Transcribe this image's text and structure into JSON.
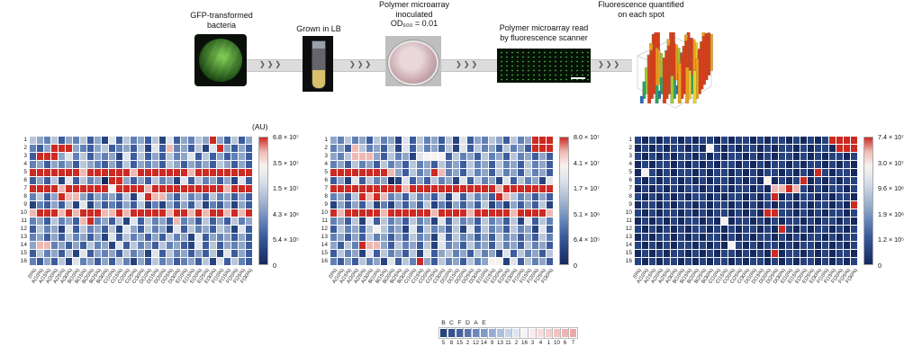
{
  "figure": {
    "unit_label": "(AU)"
  },
  "icons": {
    "chevron_group": "❯❯❯"
  },
  "workflow": {
    "steps": [
      {
        "caption": "GFP-transformed\nbacteria",
        "image": "petri-dish-gfp-photo"
      },
      {
        "caption": "Grown in LB",
        "image": "culture-tube-photo"
      },
      {
        "caption": "Polymer microarray\ninoculated\nOD₆₀₀ = 0.01",
        "image": "inoculated-dish-photo"
      },
      {
        "caption": "Polymer microarray read\nby fluorescence scanner",
        "image": "scanner-readout-image"
      },
      {
        "caption": "Fluorescence quantified\non each spot",
        "image": "3d-bar-plot-image"
      }
    ]
  },
  "heatmap_shared": {
    "row_labels": [
      "1",
      "2",
      "3",
      "4",
      "5",
      "6",
      "7",
      "8",
      "9",
      "10",
      "11",
      "12",
      "13",
      "14",
      "15",
      "16"
    ],
    "col_labels": [
      "(0%)",
      "A(10%)",
      "A(15%)",
      "A(20%)",
      "A(25%)",
      "A(30%)",
      "B(10%)",
      "B(15%)",
      "B(20%)",
      "B(25%)",
      "B(30%)",
      "C(10%)",
      "C(15%)",
      "C(20%)",
      "C(25%)",
      "C(30%)",
      "D(10%)",
      "D(15%)",
      "D(20%)",
      "D(25%)",
      "D(30%)",
      "E(10%)",
      "E(15%)",
      "E(20%)",
      "E(25%)",
      "E(30%)",
      "F(10%)",
      "F(15%)",
      "F(20%)",
      "F(25%)",
      "F(30%)"
    ],
    "level_colors": [
      "#16295e",
      "#27437f",
      "#3c5c9d",
      "#6181b6",
      "#8fa5c8",
      "#b9c6da",
      "#dfe3ec",
      "#f7f2f0",
      "#efb9b3",
      "#cc2a23"
    ]
  },
  "chart_data": [
    {
      "type": "heatmap",
      "name": "fluorescence-heatmap-1",
      "unit": "(AU)",
      "colorbar_ticks": [
        "6.8 × 10⁷",
        "3.5 × 10⁷",
        "1.5 × 10⁷",
        "4.3 × 10⁶",
        "5.4 × 10⁵",
        "0"
      ],
      "cells": [
        "5435243524162534251624354942524",
        "3249994324523425162834251694242",
        "2999463524341625242534625242342",
        "3424342543242524342542434254242",
        "9999999899999989999999899999999",
        "2425162534099424253416253424162",
        "9999899999979999899999999998999",
        "3524988424342516988425342534242",
        "1324251614232425131424251324142",
        "8999898999889899999899898998989",
        "3425342893425162534283425242534",
        "2534162534251642534162534254162",
        "3424253424162534242534162434242",
        "4883424253416253425342162524342",
        "2534251624342534162534242516242",
        "3242516342425314253423425162532"
      ]
    },
    {
      "type": "heatmap",
      "name": "fluorescence-heatmap-2",
      "colorbar_ticks": [
        "8.0 × 10⁷",
        "4.1 × 10⁷",
        "1.7 × 10⁷",
        "5.1 × 10⁶",
        "6.4 × 10⁵",
        "0"
      ],
      "cells": [
        "4353425341625342516243542534999",
        "3428534251625342516253425342999",
        "4358884253416777253425342534242",
        "3425342534253425342534253425342",
        "9999999984253498342534253425342",
        "2416253401624253416253416253416",
        "9999999999899999999999989999999",
        "3425989834253425162534298534242",
        "1424251314242513142425131424251",
        "9899999899999989999899999899998",
        "3425162534253416253425342516253",
        "2534257534162534251625342534162",
        "3424253424253416253424253424253",
        "4253988425342516342534253425342",
        "2534162534251624534253416253425",
        "3242534162539425342534771625342"
      ]
    },
    {
      "type": "heatmap",
      "name": "fluorescence-heatmap-3",
      "colorbar_ticks": [
        "7.4 × 10⁷",
        "3.0 × 10⁷",
        "9.6 × 10⁶",
        "1.9 × 10⁶",
        "1.2 × 10⁵",
        "0"
      ],
      "cells": [
        "1010110101101011010110101019999",
        "0101011010710101101011010110999",
        "1010101101010110101011010101101",
        "0101101010101101010110101101010",
        "0710101101011010101101010910110",
        "1010110101011010107010190101011",
        "0101010110101011010889810101101",
        "1010101011010110101901011010110",
        "0110101101011010101011010110109",
        "1010110101011010109911010101101",
        "0101010110107011010101101011010",
        "1010101011010101101091010110101",
        "0101101010110101011010101101011",
        "1010101101010710101101011010101",
        "0101011010101101010901101010110",
        "1010110101011010110101011010101"
      ]
    },
    {
      "type": "ranking-strip",
      "name": "polymer-ranking-legend",
      "letters": [
        "B",
        "C",
        "F",
        "D",
        "A",
        "E"
      ],
      "numbers": [
        "5",
        "8",
        "15",
        "2",
        "12",
        "14",
        "9",
        "13",
        "11",
        "2",
        "16",
        "3",
        "4",
        "1",
        "10",
        "6",
        "7"
      ],
      "cell_colors": [
        "#27427f",
        "#35528f",
        "#46629e",
        "#5873ac",
        "#6c86ba",
        "#8199c6",
        "#97acd2",
        "#aebfde",
        "#c6d2e9",
        "#dde4f2",
        "#f4f4f6",
        "#fbe9e9",
        "#f8dcdc",
        "#f5cfcf",
        "#f2c2c2",
        "#efb5b5",
        "#eca8a8"
      ]
    }
  ]
}
